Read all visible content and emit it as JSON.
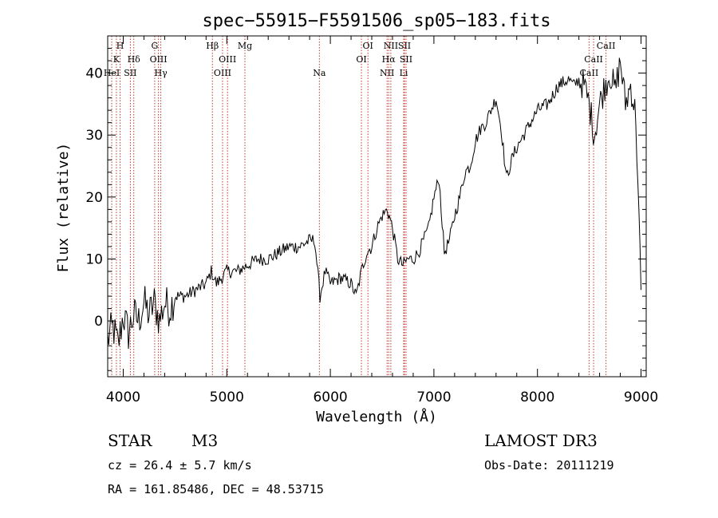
{
  "chart_data": {
    "type": "line",
    "title": "spec−55915−F5591506_sp05−183.fits",
    "xlabel": "Wavelength (Å)",
    "ylabel": "Flux (relative)",
    "xlim": [
      3850,
      9050
    ],
    "ylim": [
      -9,
      46
    ],
    "xticks": [
      4000,
      5000,
      6000,
      7000,
      8000,
      9000
    ],
    "yticks": [
      0,
      10,
      20,
      30,
      40
    ],
    "grid": false,
    "series": [
      {
        "name": "spectrum",
        "x": [
          3850,
          3900,
          3950,
          4000,
          4050,
          4100,
          4150,
          4200,
          4250,
          4300,
          4350,
          4400,
          4450,
          4500,
          4600,
          4700,
          4800,
          4850,
          4900,
          5000,
          5100,
          5200,
          5300,
          5400,
          5500,
          5600,
          5700,
          5800,
          5850,
          5900,
          5950,
          6000,
          6100,
          6200,
          6250,
          6300,
          6350,
          6400,
          6450,
          6500,
          6550,
          6600,
          6650,
          6700,
          6750,
          6800,
          6850,
          6900,
          6950,
          7000,
          7050,
          7100,
          7150,
          7200,
          7250,
          7300,
          7350,
          7400,
          7450,
          7500,
          7550,
          7600,
          7650,
          7700,
          7750,
          7800,
          7900,
          8000,
          8100,
          8200,
          8300,
          8350,
          8400,
          8450,
          8500,
          8550,
          8600,
          8650,
          8700,
          8750,
          8800,
          8850,
          8900,
          8950,
          9000
        ],
        "y": [
          -3,
          -1,
          -4,
          1,
          -2,
          1,
          0,
          3,
          1,
          3,
          0,
          3,
          2,
          4,
          4,
          5,
          6,
          8,
          6,
          8,
          8,
          9,
          10,
          10,
          11,
          12,
          12,
          13,
          13,
          4,
          8,
          6,
          7,
          6,
          4,
          8,
          11,
          12,
          15,
          17,
          18,
          15,
          10,
          9,
          10,
          10,
          11,
          13,
          15,
          20,
          23,
          11,
          13,
          17,
          20,
          24,
          25,
          29,
          31,
          32,
          34,
          36,
          31,
          23,
          26,
          28,
          31,
          34,
          35,
          38,
          39,
          38,
          39,
          38,
          35,
          30,
          35,
          38,
          40,
          37,
          42,
          35,
          38,
          33,
          5
        ]
      }
    ],
    "spectral_lines": [
      {
        "label": "H",
        "x": 3970,
        "row": 0
      },
      {
        "label": "K",
        "x": 3934,
        "row": 1
      },
      {
        "label": "HeI",
        "x": 3889,
        "row": 2
      },
      {
        "label": "SII",
        "x": 4069,
        "row": 2
      },
      {
        "label": "Hδ",
        "x": 4102,
        "row": 1
      },
      {
        "label": "G",
        "x": 4304,
        "row": 0
      },
      {
        "label": "OIII",
        "x": 4340,
        "row": 1
      },
      {
        "label": "Hγ",
        "x": 4363,
        "row": 2
      },
      {
        "label": "Hβ",
        "x": 4861,
        "row": 0
      },
      {
        "label": "OIII",
        "x": 4959,
        "row": 2
      },
      {
        "label": "OIII",
        "x": 5007,
        "row": 1
      },
      {
        "label": "Mg",
        "x": 5175,
        "row": 0
      },
      {
        "label": "Na",
        "x": 5894,
        "row": 2
      },
      {
        "label": "OI",
        "x": 6300,
        "row": 1
      },
      {
        "label": "OI",
        "x": 6363,
        "row": 0
      },
      {
        "label": "NII",
        "x": 6548,
        "row": 2
      },
      {
        "label": "NII",
        "x": 6584,
        "row": 0
      },
      {
        "label": "Hα",
        "x": 6563,
        "row": 1
      },
      {
        "label": "SII",
        "x": 6716,
        "row": 0
      },
      {
        "label": "SII",
        "x": 6731,
        "row": 1
      },
      {
        "label": "Li",
        "x": 6708,
        "row": 2
      },
      {
        "label": "CaII",
        "x": 8498,
        "row": 2
      },
      {
        "label": "CaII",
        "x": 8542,
        "row": 1
      },
      {
        "label": "CaII",
        "x": 8662,
        "row": 0
      }
    ]
  },
  "info": {
    "object_class": "STAR",
    "subclass": "M3",
    "survey": "LAMOST DR3",
    "redshift": "cz = 26.4 ± 5.7 km/s",
    "obs_date": "Obs-Date: 20111219",
    "coords": "RA = 161.85486, DEC =  48.53715"
  }
}
